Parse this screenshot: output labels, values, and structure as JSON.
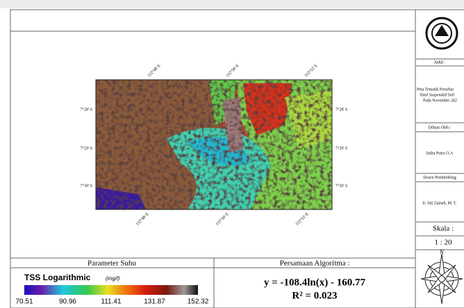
{
  "map": {
    "lon_labels": [
      "112°48' E",
      "112°50' E",
      "112°52' E"
    ],
    "lat_labels": [
      "7°28' S",
      "7°29' S",
      "7°30' S"
    ]
  },
  "legend_panel": {
    "header": "Parameter Suhu",
    "title": "TSS Logarithmic",
    "unit": "(mg/l)",
    "ticks": [
      70.51,
      90.96,
      111.41,
      131.87,
      152.32
    ]
  },
  "equation_panel": {
    "header": "Persamaan Algoritma :",
    "equation": "y = -108.4ln(x) - 160.77",
    "r2": "R² = 0.023"
  },
  "sidebar": {
    "judul_label": "Judul :",
    "title_lines": [
      "Peta Tematik Persebar",
      "Total Suspended Soli",
      "Pada November 202"
    ],
    "author_label": "Dibuat Oleh :",
    "author": "Indra Putra  O.A",
    "advisor_label": "Dosen Pembimbing",
    "advisor": "Ir. Siti Zainab, M. T.",
    "scale_label": "Skala :",
    "scale": "1 : 20"
  }
}
